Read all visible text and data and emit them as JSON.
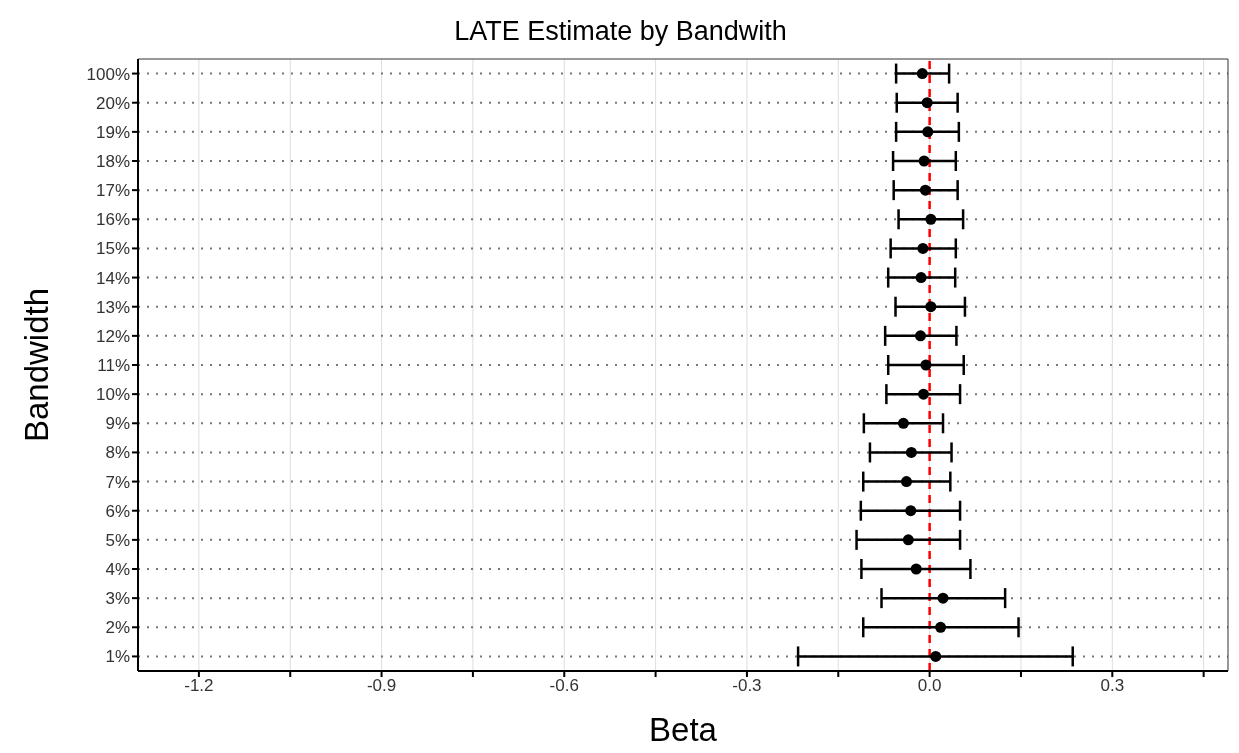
{
  "chart_data": {
    "type": "scatter",
    "orientation": "horizontal",
    "title": "LATE Estimate by Bandwith",
    "xlabel": "Beta",
    "ylabel": "Bandwidth",
    "categories": [
      "100%",
      "20%",
      "19%",
      "18%",
      "17%",
      "16%",
      "15%",
      "14%",
      "13%",
      "12%",
      "11%",
      "10%",
      "9%",
      "8%",
      "7%",
      "6%",
      "5%",
      "4%",
      "3%",
      "2%",
      "1%"
    ],
    "series": [
      {
        "color": "#000000",
        "values": [
          -0.012,
          -0.004,
          -0.003,
          -0.009,
          -0.007,
          0.002,
          -0.011,
          -0.014,
          0.002,
          -0.015,
          -0.006,
          -0.01,
          -0.043,
          -0.03,
          -0.038,
          -0.031,
          -0.035,
          -0.022,
          0.022,
          0.018,
          0.01
        ],
        "errors": [
          [
            -0.055,
            0.032
          ],
          [
            -0.054,
            0.046
          ],
          [
            -0.055,
            0.048
          ],
          [
            -0.06,
            0.043
          ],
          [
            -0.059,
            0.046
          ],
          [
            -0.051,
            0.055
          ],
          [
            -0.064,
            0.043
          ],
          [
            -0.068,
            0.042
          ],
          [
            -0.056,
            0.058
          ],
          [
            -0.073,
            0.044
          ],
          [
            -0.068,
            0.056
          ],
          [
            -0.071,
            0.05
          ],
          [
            -0.108,
            0.022
          ],
          [
            -0.098,
            0.036
          ],
          [
            -0.109,
            0.034
          ],
          [
            -0.113,
            0.05
          ],
          [
            -0.12,
            0.05
          ],
          [
            -0.112,
            0.067
          ],
          [
            -0.079,
            0.124
          ],
          [
            -0.109,
            0.146
          ],
          [
            -0.216,
            0.235
          ]
        ]
      }
    ],
    "xlim": [
      -1.3,
      0.49
    ],
    "xticks": [
      -1.2,
      {
        "value": -1.05,
        "label": null
      },
      -0.9,
      {
        "value": -0.75,
        "label": null
      },
      -0.6,
      {
        "value": -0.45,
        "label": null
      },
      -0.3,
      {
        "value": -0.15,
        "label": null
      },
      {
        "value": 0,
        "label": "0.0"
      },
      {
        "value": 0.15,
        "label": null
      },
      0.3,
      {
        "value": 0.45,
        "label": null
      }
    ],
    "ref_lines": [
      {
        "axis": "x",
        "value": 0,
        "color": "#ff0000",
        "line_style": "dashed"
      }
    ],
    "grid": true,
    "marker": "circle"
  }
}
